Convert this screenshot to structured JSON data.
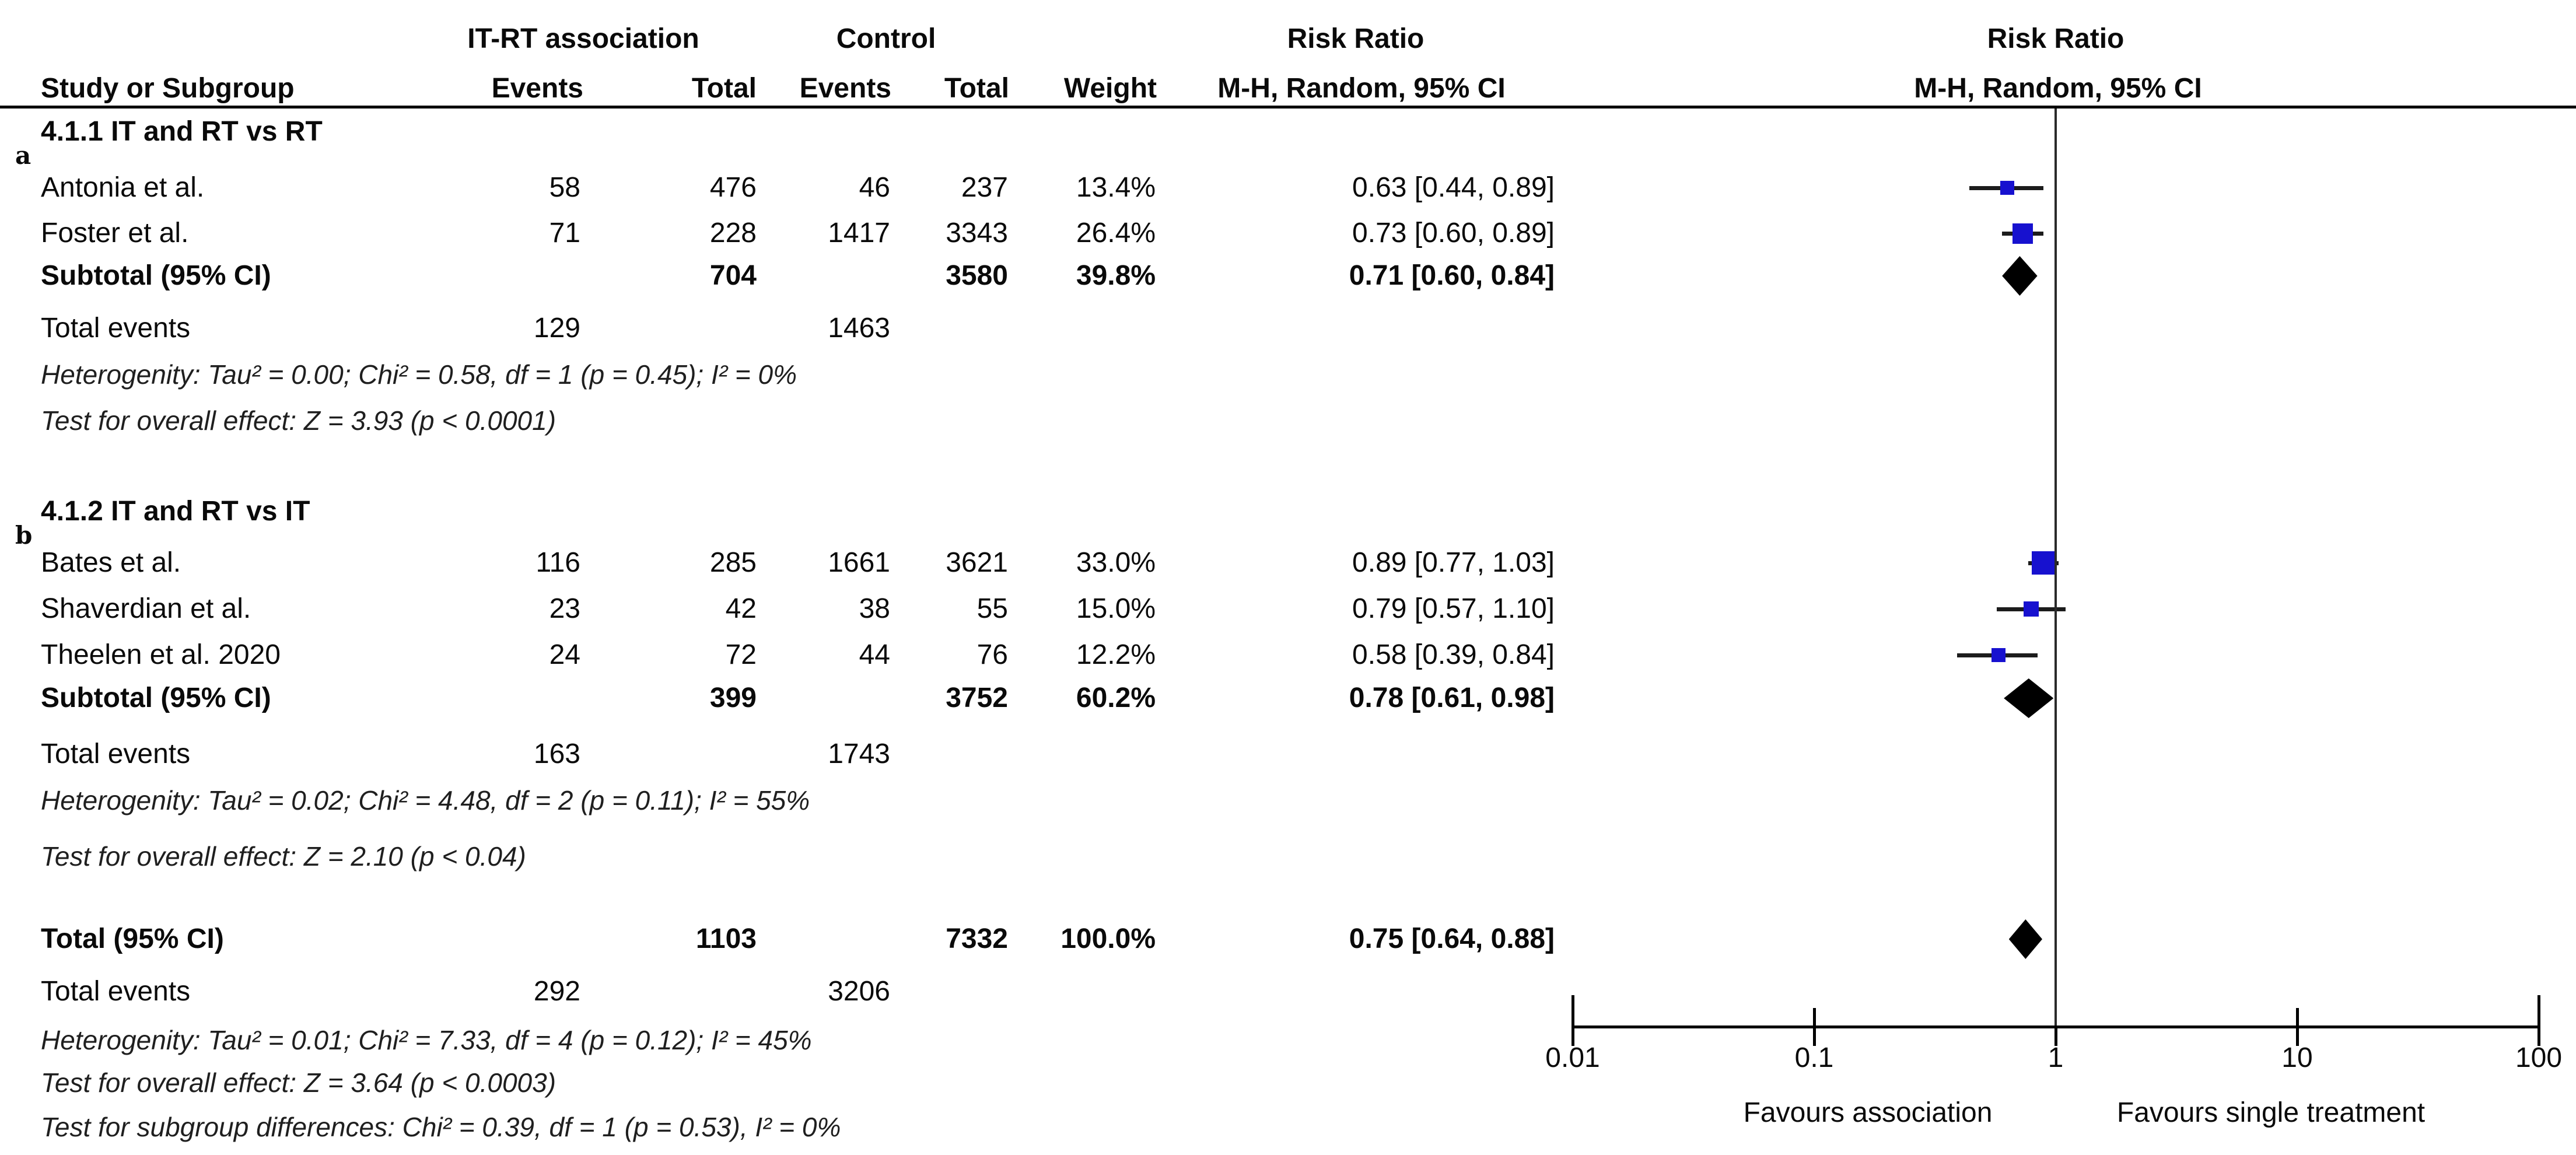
{
  "header": {
    "group1_label": "IT-RT association",
    "group2_label": "Control",
    "effect_left_title": "Risk Ratio",
    "effect_left_subtitle": "M-H, Random, 95% CI",
    "effect_right_title": "Risk Ratio",
    "effect_right_subtitle": "M-H, Random, 95% CI",
    "col_study": "Study or Subgroup",
    "col_events": "Events",
    "col_total": "Total",
    "col_weight": "Weight"
  },
  "footer": {
    "left": "Favours association",
    "right": "Favours single treatment"
  },
  "colors": {
    "marker_blue": "#1711cf",
    "diamond_black": "#000000",
    "text_black": "#0a0a0a"
  },
  "chart_data": {
    "type": "scatter",
    "subtype": "forest-plot",
    "effect_measure": "Risk Ratio",
    "method": "M-H, Random, 95% CI",
    "x_axis": {
      "scale": "log",
      "tick_values": [
        0.01,
        0.1,
        1,
        10,
        100
      ],
      "tick_labels": [
        "0.01",
        "0.1",
        "1",
        "10",
        "100"
      ],
      "ref_line": 1,
      "range": [
        0.01,
        100
      ]
    },
    "groups": [
      {
        "id": "4.1.1",
        "title": "4.1.1 IT and RT vs RT",
        "panel_label": "a",
        "studies": [
          {
            "name": "Antonia et al.",
            "events1": "58",
            "total1": "476",
            "events2": "46",
            "total2": "237",
            "weight": "13.4%",
            "weight_value": 13.4,
            "rr": 0.63,
            "ci_low": 0.44,
            "ci_high": 0.89,
            "rr_text": "0.63 [0.44, 0.89]"
          },
          {
            "name": "Foster et al.",
            "events1": "71",
            "total1": "228",
            "events2": "1417",
            "total2": "3343",
            "weight": "26.4%",
            "weight_value": 26.4,
            "rr": 0.73,
            "ci_low": 0.6,
            "ci_high": 0.89,
            "rr_text": "0.73 [0.60, 0.89]"
          }
        ],
        "subtotal": {
          "label": "Subtotal (95% CI)",
          "total1": "704",
          "total2": "3580",
          "weight": "39.8%",
          "rr": 0.71,
          "ci_low": 0.6,
          "ci_high": 0.84,
          "rr_text": "0.71 [0.60, 0.84]"
        },
        "total_events": {
          "label": "Total events",
          "events1": "129",
          "events2": "1463"
        },
        "heterogeneity": "Heterogenity: Tau² = 0.00; Chi² = 0.58, df = 1 (p = 0.45); I² = 0%",
        "overall_effect": "Test for overall effect: Z = 3.93 (p < 0.0001)"
      },
      {
        "id": "4.1.2",
        "title": "4.1.2 IT and RT vs IT",
        "panel_label": "b",
        "studies": [
          {
            "name": "Bates et al.",
            "events1": "116",
            "total1": "285",
            "events2": "1661",
            "total2": "3621",
            "weight": "33.0%",
            "weight_value": 33.0,
            "rr": 0.89,
            "ci_low": 0.77,
            "ci_high": 1.03,
            "rr_text": "0.89 [0.77, 1.03]"
          },
          {
            "name": "Shaverdian et al.",
            "events1": "23",
            "total1": "42",
            "events2": "38",
            "total2": "55",
            "weight": "15.0%",
            "weight_value": 15.0,
            "rr": 0.79,
            "ci_low": 0.57,
            "ci_high": 1.1,
            "rr_text": "0.79 [0.57, 1.10]"
          },
          {
            "name": "Theelen et al. 2020",
            "events1": "24",
            "total1": "72",
            "events2": "44",
            "total2": "76",
            "weight": "12.2%",
            "weight_value": 12.2,
            "rr": 0.58,
            "ci_low": 0.39,
            "ci_high": 0.84,
            "rr_text": "0.58 [0.39, 0.84]"
          }
        ],
        "subtotal": {
          "label": "Subtotal (95% CI)",
          "total1": "399",
          "total2": "3752",
          "weight": "60.2%",
          "rr": 0.78,
          "ci_low": 0.61,
          "ci_high": 0.98,
          "rr_text": "0.78 [0.61, 0.98]"
        },
        "total_events": {
          "label": "Total events",
          "events1": "163",
          "events2": "1743"
        },
        "heterogeneity": "Heterogenity: Tau² = 0.02; Chi² = 4.48, df = 2 (p = 0.11); I² = 55%",
        "overall_effect": "Test for overall effect: Z = 2.10 (p < 0.04)"
      }
    ],
    "total": {
      "row": {
        "label": "Total (95% CI)",
        "total1": "1103",
        "total2": "7332",
        "weight": "100.0%",
        "rr": 0.75,
        "ci_low": 0.64,
        "ci_high": 0.88,
        "rr_text": "0.75 [0.64, 0.88]"
      },
      "total_events": {
        "label": "Total events",
        "events1": "292",
        "events2": "3206"
      },
      "heterogeneity": "Heterogenity: Tau² = 0.01; Chi² = 7.33, df = 4 (p = 0.12); I² = 45%",
      "overall_effect": "Test for overall effect: Z = 3.64 (p < 0.0003)",
      "subgroup_differences": "Test for subgroup differences: Chi² = 0.39, df = 1 (p = 0.53), I² = 0%"
    }
  }
}
